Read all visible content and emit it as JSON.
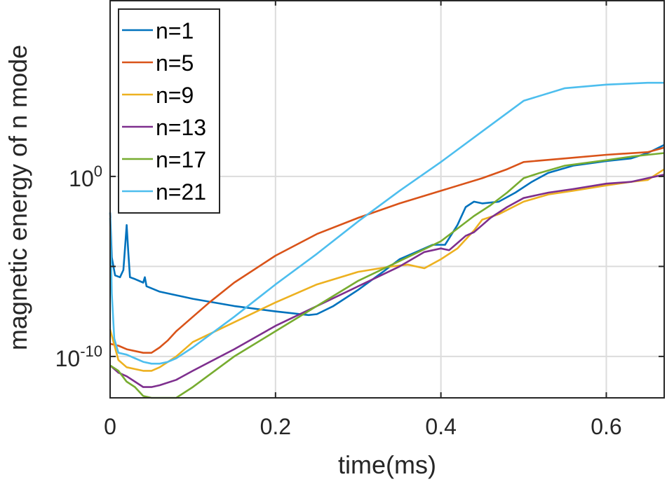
{
  "chart_data": {
    "type": "line",
    "title": "",
    "xlabel": "time(ms)",
    "ylabel": "magnetic energy of n mode",
    "xlim": [
      0,
      0.67
    ],
    "ylim_log10": [
      -12.3,
      9.8
    ],
    "y_scale": "log",
    "grid": true,
    "x_ticks": [
      0,
      0.2,
      0.4,
      0.6
    ],
    "x_tick_labels": [
      "0",
      "0.2",
      "0.4",
      "0.6"
    ],
    "y_ticks_log10": [
      -10,
      -5,
      0
    ],
    "y_tick_labels": [
      {
        "base": "10",
        "exp": "-10"
      },
      {
        "base": "",
        "exp": ""
      },
      {
        "base": "10",
        "exp": "0"
      }
    ],
    "legend_position": "top-left",
    "series": [
      {
        "name": "n=1",
        "color": "#0072BD",
        "points": [
          [
            0,
            -2
          ],
          [
            0.002,
            -4.5
          ],
          [
            0.006,
            -5.5
          ],
          [
            0.012,
            -5.6
          ],
          [
            0.016,
            -5.2
          ],
          [
            0.018,
            -4
          ],
          [
            0.02,
            -2.7
          ],
          [
            0.022,
            -4.2
          ],
          [
            0.024,
            -5.6
          ],
          [
            0.03,
            -5.7
          ],
          [
            0.04,
            -5.9
          ],
          [
            0.042,
            -5.6
          ],
          [
            0.044,
            -6.1
          ],
          [
            0.06,
            -6.4
          ],
          [
            0.1,
            -6.8
          ],
          [
            0.15,
            -7.2
          ],
          [
            0.2,
            -7.5
          ],
          [
            0.24,
            -7.7
          ],
          [
            0.25,
            -7.65
          ],
          [
            0.27,
            -7.2
          ],
          [
            0.3,
            -6.3
          ],
          [
            0.33,
            -5.3
          ],
          [
            0.35,
            -4.6
          ],
          [
            0.37,
            -4.2
          ],
          [
            0.39,
            -3.8
          ],
          [
            0.405,
            -3.8
          ],
          [
            0.42,
            -2.7
          ],
          [
            0.43,
            -1.7
          ],
          [
            0.44,
            -1.4
          ],
          [
            0.45,
            -1.5
          ],
          [
            0.47,
            -1.4
          ],
          [
            0.49,
            -0.9
          ],
          [
            0.51,
            -0.3
          ],
          [
            0.53,
            0.2
          ],
          [
            0.56,
            0.6
          ],
          [
            0.6,
            0.85
          ],
          [
            0.63,
            1.0
          ],
          [
            0.65,
            1.3
          ],
          [
            0.67,
            1.75
          ]
        ]
      },
      {
        "name": "n=5",
        "color": "#D95319",
        "points": [
          [
            0,
            -9.3
          ],
          [
            0.01,
            -9.4
          ],
          [
            0.02,
            -9.6
          ],
          [
            0.03,
            -9.7
          ],
          [
            0.04,
            -9.8
          ],
          [
            0.05,
            -9.8
          ],
          [
            0.06,
            -9.5
          ],
          [
            0.07,
            -9.1
          ],
          [
            0.08,
            -8.6
          ],
          [
            0.1,
            -7.8
          ],
          [
            0.12,
            -7.0
          ],
          [
            0.15,
            -5.9
          ],
          [
            0.2,
            -4.4
          ],
          [
            0.25,
            -3.2
          ],
          [
            0.3,
            -2.3
          ],
          [
            0.35,
            -1.5
          ],
          [
            0.4,
            -0.8
          ],
          [
            0.45,
            -0.1
          ],
          [
            0.48,
            0.4
          ],
          [
            0.5,
            0.8
          ],
          [
            0.55,
            1.0
          ],
          [
            0.6,
            1.2
          ],
          [
            0.65,
            1.35
          ],
          [
            0.67,
            1.6
          ]
        ]
      },
      {
        "name": "n=9",
        "color": "#EDB120",
        "points": [
          [
            0,
            -8.5
          ],
          [
            0.01,
            -10.2
          ],
          [
            0.02,
            -10.6
          ],
          [
            0.03,
            -10.7
          ],
          [
            0.04,
            -10.8
          ],
          [
            0.05,
            -10.8
          ],
          [
            0.06,
            -10.6
          ],
          [
            0.08,
            -10.0
          ],
          [
            0.1,
            -9.2
          ],
          [
            0.15,
            -8.1
          ],
          [
            0.2,
            -7.0
          ],
          [
            0.25,
            -6.0
          ],
          [
            0.3,
            -5.3
          ],
          [
            0.34,
            -5.0
          ],
          [
            0.36,
            -4.9
          ],
          [
            0.38,
            -5.1
          ],
          [
            0.4,
            -4.6
          ],
          [
            0.42,
            -4.0
          ],
          [
            0.44,
            -3.0
          ],
          [
            0.45,
            -2.4
          ],
          [
            0.47,
            -2.1
          ],
          [
            0.5,
            -1.4
          ],
          [
            0.53,
            -1.0
          ],
          [
            0.56,
            -0.8
          ],
          [
            0.6,
            -0.5
          ],
          [
            0.63,
            -0.3
          ],
          [
            0.65,
            -0.2
          ],
          [
            0.67,
            0.4
          ]
        ]
      },
      {
        "name": "n=13",
        "color": "#7E2F8E",
        "points": [
          [
            0,
            -10.5
          ],
          [
            0.01,
            -10.9
          ],
          [
            0.02,
            -11.1
          ],
          [
            0.03,
            -11.4
          ],
          [
            0.04,
            -11.7
          ],
          [
            0.05,
            -11.7
          ],
          [
            0.06,
            -11.6
          ],
          [
            0.08,
            -11.3
          ],
          [
            0.1,
            -10.8
          ],
          [
            0.15,
            -9.6
          ],
          [
            0.2,
            -8.3
          ],
          [
            0.25,
            -7.2
          ],
          [
            0.3,
            -6.1
          ],
          [
            0.35,
            -5.0
          ],
          [
            0.38,
            -4.2
          ],
          [
            0.4,
            -4.0
          ],
          [
            0.41,
            -4.1
          ],
          [
            0.42,
            -3.7
          ],
          [
            0.43,
            -3.3
          ],
          [
            0.44,
            -3.1
          ],
          [
            0.45,
            -2.7
          ],
          [
            0.46,
            -2.3
          ],
          [
            0.48,
            -1.7
          ],
          [
            0.5,
            -1.2
          ],
          [
            0.53,
            -0.9
          ],
          [
            0.56,
            -0.7
          ],
          [
            0.6,
            -0.4
          ],
          [
            0.63,
            -0.3
          ],
          [
            0.65,
            -0.1
          ],
          [
            0.67,
            0.1
          ]
        ]
      },
      {
        "name": "n=17",
        "color": "#77AC30",
        "points": [
          [
            0,
            -10.5
          ],
          [
            0.01,
            -10.8
          ],
          [
            0.02,
            -11.4
          ],
          [
            0.03,
            -11.7
          ],
          [
            0.04,
            -12.2
          ],
          [
            0.05,
            -12.3
          ],
          [
            0.06,
            -12.3
          ],
          [
            0.08,
            -12.3
          ],
          [
            0.1,
            -11.7
          ],
          [
            0.15,
            -10.0
          ],
          [
            0.2,
            -8.6
          ],
          [
            0.25,
            -7.2
          ],
          [
            0.3,
            -5.8
          ],
          [
            0.35,
            -4.7
          ],
          [
            0.4,
            -3.6
          ],
          [
            0.42,
            -2.9
          ],
          [
            0.44,
            -2.2
          ],
          [
            0.46,
            -1.6
          ],
          [
            0.48,
            -0.9
          ],
          [
            0.5,
            -0.1
          ],
          [
            0.52,
            0.2
          ],
          [
            0.55,
            0.6
          ],
          [
            0.6,
            0.9
          ],
          [
            0.63,
            1.1
          ],
          [
            0.65,
            1.2
          ],
          [
            0.67,
            1.3
          ]
        ]
      },
      {
        "name": "n=21",
        "color": "#4DBEEE",
        "points": [
          [
            0,
            -2.3
          ],
          [
            0.002,
            -6.5
          ],
          [
            0.005,
            -9.0
          ],
          [
            0.01,
            -9.8
          ],
          [
            0.02,
            -9.9
          ],
          [
            0.03,
            -10.1
          ],
          [
            0.04,
            -10.3
          ],
          [
            0.05,
            -10.4
          ],
          [
            0.06,
            -10.4
          ],
          [
            0.07,
            -10.3
          ],
          [
            0.08,
            -10.1
          ],
          [
            0.1,
            -9.5
          ],
          [
            0.15,
            -7.8
          ],
          [
            0.2,
            -6.0
          ],
          [
            0.25,
            -4.3
          ],
          [
            0.3,
            -2.5
          ],
          [
            0.35,
            -0.8
          ],
          [
            0.4,
            0.8
          ],
          [
            0.45,
            2.5
          ],
          [
            0.5,
            4.2
          ],
          [
            0.55,
            4.9
          ],
          [
            0.6,
            5.1
          ],
          [
            0.65,
            5.2
          ],
          [
            0.67,
            5.2
          ]
        ]
      }
    ]
  }
}
